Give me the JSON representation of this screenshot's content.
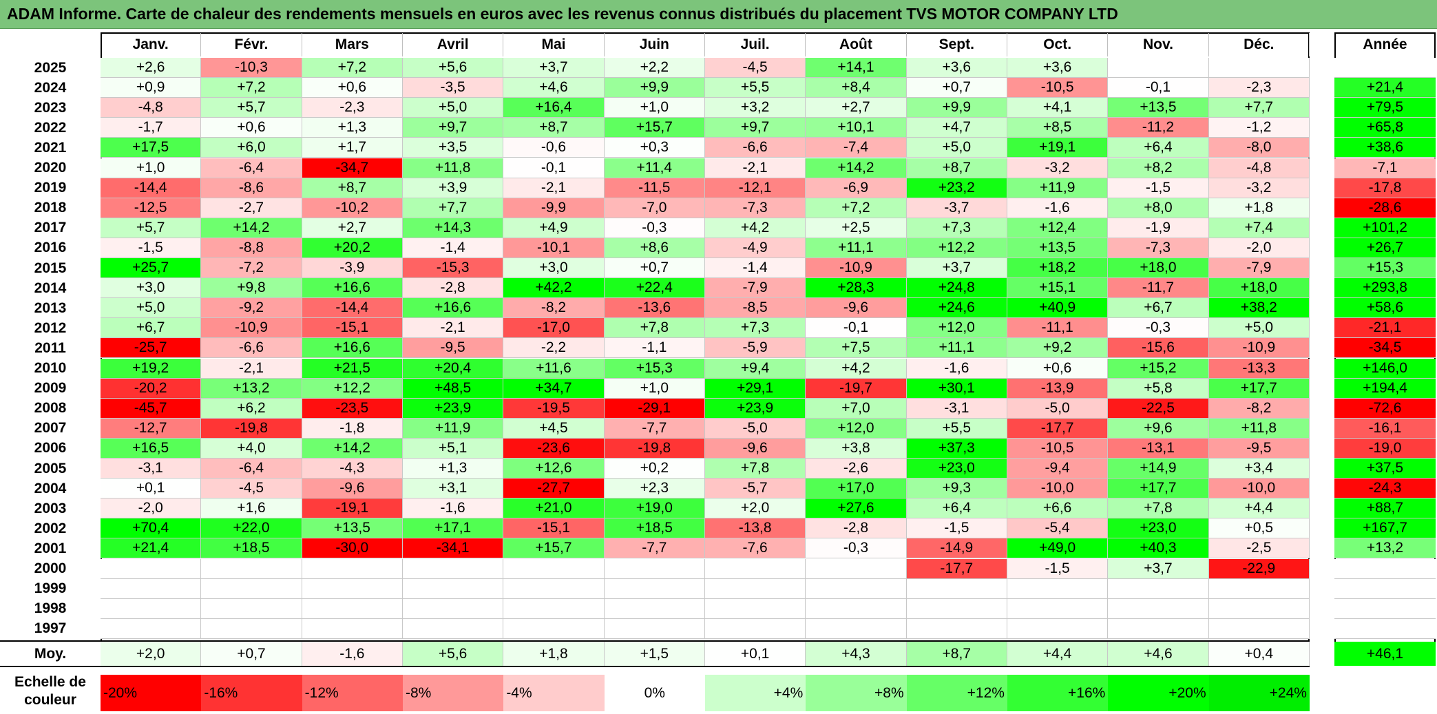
{
  "title": "ADAM Informe. Carte de chaleur des rendements mensuels en euros avec les revenus connus distribués du placement TVS MOTOR COMPANY LTD",
  "chart_data": {
    "type": "heatmap",
    "months": [
      "Janv.",
      "Févr.",
      "Mars",
      "Avril",
      "Mai",
      "Juin",
      "Juil.",
      "Août",
      "Sept.",
      "Oct.",
      "Nov.",
      "Déc."
    ],
    "year_header": "Année",
    "rows": [
      {
        "year": "2025",
        "values": [
          "+2,6",
          "-10,3",
          "+7,2",
          "+5,6",
          "+3,7",
          "+2,2",
          "-4,5",
          "+14,1",
          "+3,6",
          "+3,6",
          "",
          ""
        ],
        "annual": ""
      },
      {
        "year": "2024",
        "values": [
          "+0,9",
          "+7,2",
          "+0,6",
          "-3,5",
          "+4,6",
          "+9,9",
          "+5,5",
          "+8,4",
          "+0,7",
          "-10,5",
          "-0,1",
          "-2,3"
        ],
        "annual": "+21,4"
      },
      {
        "year": "2023",
        "values": [
          "-4,8",
          "+5,7",
          "-2,3",
          "+5,0",
          "+16,4",
          "+1,0",
          "+3,2",
          "+2,7",
          "+9,9",
          "+4,1",
          "+13,5",
          "+7,7"
        ],
        "annual": "+79,5"
      },
      {
        "year": "2022",
        "values": [
          "-1,7",
          "+0,6",
          "+1,3",
          "+9,7",
          "+8,7",
          "+15,7",
          "+9,7",
          "+10,1",
          "+4,7",
          "+8,5",
          "-11,2",
          "-1,2"
        ],
        "annual": "+65,8"
      },
      {
        "year": "2021",
        "values": [
          "+17,5",
          "+6,0",
          "+1,7",
          "+3,5",
          "-0,6",
          "+0,3",
          "-6,6",
          "-7,4",
          "+5,0",
          "+19,1",
          "+6,4",
          "-8,0"
        ],
        "annual": "+38,6"
      },
      {
        "year": "2020",
        "values": [
          "+1,0",
          "-6,4",
          "-34,7",
          "+11,8",
          "-0,1",
          "+11,4",
          "-2,1",
          "+14,2",
          "+8,7",
          "-3,2",
          "+8,2",
          "-4,8"
        ],
        "annual": "-7,1"
      },
      {
        "year": "2019",
        "values": [
          "-14,4",
          "-8,6",
          "+8,7",
          "+3,9",
          "-2,1",
          "-11,5",
          "-12,1",
          "-6,9",
          "+23,2",
          "+11,9",
          "-1,5",
          "-3,2"
        ],
        "annual": "-17,8"
      },
      {
        "year": "2018",
        "values": [
          "-12,5",
          "-2,7",
          "-10,2",
          "+7,7",
          "-9,9",
          "-7,0",
          "-7,3",
          "+7,2",
          "-3,7",
          "-1,6",
          "+8,0",
          "+1,8"
        ],
        "annual": "-28,6"
      },
      {
        "year": "2017",
        "values": [
          "+5,7",
          "+14,2",
          "+2,7",
          "+14,3",
          "+4,9",
          "-0,3",
          "+4,2",
          "+2,5",
          "+7,3",
          "+12,4",
          "-1,9",
          "+7,4"
        ],
        "annual": "+101,2"
      },
      {
        "year": "2016",
        "values": [
          "-1,5",
          "-8,8",
          "+20,2",
          "-1,4",
          "-10,1",
          "+8,6",
          "-4,9",
          "+11,1",
          "+12,2",
          "+13,5",
          "-7,3",
          "-2,0"
        ],
        "annual": "+26,7"
      },
      {
        "year": "2015",
        "values": [
          "+25,7",
          "-7,2",
          "-3,9",
          "-15,3",
          "+3,0",
          "+0,7",
          "-1,4",
          "-10,9",
          "+3,7",
          "+18,2",
          "+18,0",
          "-7,9"
        ],
        "annual": "+15,3"
      },
      {
        "year": "2014",
        "values": [
          "+3,0",
          "+9,8",
          "+16,6",
          "-2,8",
          "+42,2",
          "+22,4",
          "-7,9",
          "+28,3",
          "+24,8",
          "+15,1",
          "-11,7",
          "+18,0"
        ],
        "annual": "+293,8"
      },
      {
        "year": "2013",
        "values": [
          "+5,0",
          "-9,2",
          "-14,4",
          "+16,6",
          "-8,2",
          "-13,6",
          "-8,5",
          "-9,6",
          "+24,6",
          "+40,9",
          "+6,7",
          "+38,2"
        ],
        "annual": "+58,6"
      },
      {
        "year": "2012",
        "values": [
          "+6,7",
          "-10,9",
          "-15,1",
          "-2,1",
          "-17,0",
          "+7,8",
          "+7,3",
          "-0,1",
          "+12,0",
          "-11,1",
          "-0,3",
          "+5,0"
        ],
        "annual": "-21,1"
      },
      {
        "year": "2011",
        "values": [
          "-25,7",
          "-6,6",
          "+16,6",
          "-9,5",
          "-2,2",
          "-1,1",
          "-5,9",
          "+7,5",
          "+11,1",
          "+9,2",
          "-15,6",
          "-10,9"
        ],
        "annual": "-34,5"
      },
      {
        "year": "2010",
        "values": [
          "+19,2",
          "-2,1",
          "+21,5",
          "+20,4",
          "+11,6",
          "+15,3",
          "+9,4",
          "+4,2",
          "-1,6",
          "+0,6",
          "+15,2",
          "-13,3"
        ],
        "annual": "+146,0"
      },
      {
        "year": "2009",
        "values": [
          "-20,2",
          "+13,2",
          "+12,2",
          "+48,5",
          "+34,7",
          "+1,0",
          "+29,1",
          "-19,7",
          "+30,1",
          "-13,9",
          "+5,8",
          "+17,7"
        ],
        "annual": "+194,4"
      },
      {
        "year": "2008",
        "values": [
          "-45,7",
          "+6,2",
          "-23,5",
          "+23,9",
          "-19,5",
          "-29,1",
          "+23,9",
          "+7,0",
          "-3,1",
          "-5,0",
          "-22,5",
          "-8,2"
        ],
        "annual": "-72,6"
      },
      {
        "year": "2007",
        "values": [
          "-12,7",
          "-19,8",
          "-1,8",
          "+11,9",
          "+4,5",
          "-7,7",
          "-5,0",
          "+12,0",
          "+5,5",
          "-17,7",
          "+9,6",
          "+11,8"
        ],
        "annual": "-16,1"
      },
      {
        "year": "2006",
        "values": [
          "+16,5",
          "+4,0",
          "+14,2",
          "+5,1",
          "-23,6",
          "-19,8",
          "-9,6",
          "+3,8",
          "+37,3",
          "-10,5",
          "-13,1",
          "-9,5"
        ],
        "annual": "-19,0"
      },
      {
        "year": "2005",
        "values": [
          "-3,1",
          "-6,4",
          "-4,3",
          "+1,3",
          "+12,6",
          "+0,2",
          "+7,8",
          "-2,6",
          "+23,0",
          "-9,4",
          "+14,9",
          "+3,4"
        ],
        "annual": "+37,5"
      },
      {
        "year": "2004",
        "values": [
          "+0,1",
          "-4,5",
          "-9,6",
          "+3,1",
          "-27,7",
          "+2,3",
          "-5,7",
          "+17,0",
          "+9,3",
          "-10,0",
          "+17,7",
          "-10,0"
        ],
        "annual": "-24,3"
      },
      {
        "year": "2003",
        "values": [
          "-2,0",
          "+1,6",
          "-19,1",
          "-1,6",
          "+21,0",
          "+19,0",
          "+2,0",
          "+27,6",
          "+6,4",
          "+6,6",
          "+7,8",
          "+4,4"
        ],
        "annual": "+88,7"
      },
      {
        "year": "2002",
        "values": [
          "+70,4",
          "+22,0",
          "+13,5",
          "+17,1",
          "-15,1",
          "+18,5",
          "-13,8",
          "-2,8",
          "-1,5",
          "-5,4",
          "+23,0",
          "+0,5"
        ],
        "annual": "+167,7"
      },
      {
        "year": "2001",
        "values": [
          "+21,4",
          "+18,5",
          "-30,0",
          "-34,1",
          "+15,7",
          "-7,7",
          "-7,6",
          "-0,3",
          "-14,9",
          "+49,0",
          "+40,3",
          "-2,5"
        ],
        "annual": "+13,2"
      },
      {
        "year": "2000",
        "values": [
          "",
          "",
          "",
          "",
          "",
          "",
          "",
          "",
          "-17,7",
          "-1,5",
          "+3,7",
          "-22,9"
        ],
        "annual": ""
      },
      {
        "year": "1999",
        "values": [
          "",
          "",
          "",
          "",
          "",
          "",
          "",
          "",
          "",
          "",
          "",
          ""
        ],
        "annual": ""
      },
      {
        "year": "1998",
        "values": [
          "",
          "",
          "",
          "",
          "",
          "",
          "",
          "",
          "",
          "",
          "",
          ""
        ],
        "annual": ""
      },
      {
        "year": "1997",
        "values": [
          "",
          "",
          "",
          "",
          "",
          "",
          "",
          "",
          "",
          "",
          "",
          ""
        ],
        "annual": ""
      }
    ],
    "average": {
      "label": "Moy.",
      "values": [
        "+2,0",
        "+0,7",
        "-1,6",
        "+5,6",
        "+1,8",
        "+1,5",
        "+0,1",
        "+4,3",
        "+8,7",
        "+4,4",
        "+4,6",
        "+0,4"
      ],
      "annual": "+46,1"
    },
    "scale": {
      "label": "Echelle de couleur",
      "steps": [
        {
          "label": "-20%",
          "color": "#ff0000"
        },
        {
          "label": "-16%",
          "color": "#ff3333"
        },
        {
          "label": "-12%",
          "color": "#ff6666"
        },
        {
          "label": "-8%",
          "color": "#ff9999"
        },
        {
          "label": "-4%",
          "color": "#ffcccc"
        },
        {
          "label": "0%",
          "color": "#ffffff"
        },
        {
          "label": "+4%",
          "color": "#ccffcc"
        },
        {
          "label": "+8%",
          "color": "#99ff99"
        },
        {
          "label": "+12%",
          "color": "#66ff66"
        },
        {
          "label": "+16%",
          "color": "#33ff33"
        },
        {
          "label": "+20%",
          "color": "#00ff00"
        },
        {
          "label": "+24%",
          "color": "#00ee00"
        }
      ]
    },
    "colors": {
      "title_bar": "#7cc47b",
      "max_red": "#ff0000",
      "max_green": "#00ff00"
    }
  }
}
